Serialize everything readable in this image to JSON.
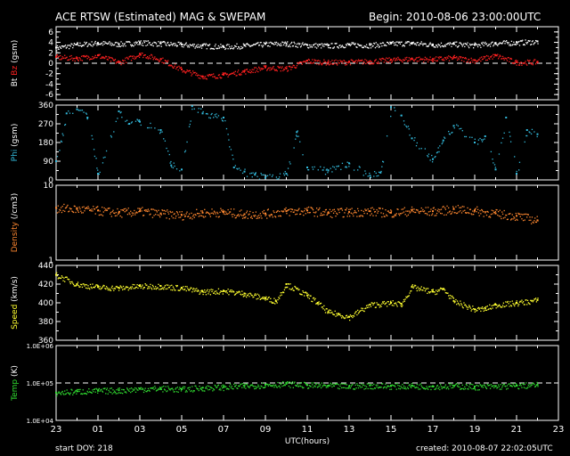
{
  "header": {
    "title": "ACE RTSW (Estimated) MAG & SWEPAM",
    "begin": "Begin: 2010-08-06 23:00:00UTC"
  },
  "footer": {
    "start_doy": "start DOY: 218",
    "created": "created: 2010-08-07 22:02:05UTC"
  },
  "colors": {
    "background": "#000000",
    "frame": "#ffffff",
    "bt": "#ffffff",
    "bz": "#ff2020",
    "phi": "#33bbdd",
    "density": "#ff8830",
    "speed": "#ffff30",
    "temp": "#30dd30"
  },
  "chart_data": [
    {
      "type": "scatter",
      "ylabel_parts": [
        "Bt",
        "Bz",
        "(gsm)"
      ],
      "ylim": [
        -7,
        7
      ],
      "yticks": [
        "6",
        "4",
        "2",
        "0",
        "-2",
        "-4",
        "-6"
      ],
      "reference_line": 0,
      "series": [
        {
          "name": "Bt",
          "x": [
            0,
            1,
            2,
            3,
            4,
            5,
            6,
            7,
            8,
            9,
            10,
            11,
            12,
            13,
            14,
            15,
            16,
            17,
            18,
            19,
            20,
            21,
            22,
            23
          ],
          "values": [
            3.0,
            3.6,
            3.9,
            3.7,
            4.0,
            3.8,
            3.6,
            3.4,
            3.2,
            3.4,
            3.7,
            3.8,
            3.5,
            3.4,
            3.6,
            3.5,
            3.8,
            3.9,
            3.6,
            3.7,
            3.5,
            3.9,
            4.0,
            4.2
          ]
        },
        {
          "name": "Bz",
          "x": [
            0,
            1,
            2,
            3,
            4,
            5,
            6,
            7,
            8,
            9,
            10,
            11,
            12,
            13,
            14,
            15,
            16,
            17,
            18,
            19,
            20,
            21,
            22,
            23
          ],
          "values": [
            1.2,
            1.0,
            1.5,
            0.2,
            1.8,
            0.8,
            -1.2,
            -2.5,
            -2.2,
            -1.5,
            -0.8,
            -1.0,
            0.5,
            0.2,
            0.3,
            0.4,
            0.7,
            0.9,
            0.8,
            1.1,
            0.6,
            1.5,
            0.2,
            0.3
          ]
        }
      ]
    },
    {
      "type": "scatter",
      "ylabel_parts": [
        "Phi",
        "(gsm)"
      ],
      "ylim": [
        0,
        360
      ],
      "yticks": [
        "360",
        "270",
        "180",
        "90",
        "0"
      ],
      "series": [
        {
          "name": "Phi",
          "x": [
            0,
            0.5,
            1,
            1.5,
            2,
            3,
            3.5,
            4,
            5,
            5.5,
            6,
            6.5,
            7,
            8,
            8.5,
            9,
            9.5,
            10,
            11,
            11.5,
            12,
            13,
            14,
            15,
            15.5,
            16,
            16.5,
            17,
            18,
            18.5,
            19,
            20,
            20.5,
            21,
            21.5,
            22,
            22.5,
            23
          ],
          "values": [
            90,
            320,
            340,
            300,
            30,
            330,
            270,
            280,
            240,
            70,
            50,
            355,
            320,
            300,
            60,
            40,
            25,
            10,
            30,
            230,
            60,
            45,
            80,
            20,
            35,
            350,
            310,
            200,
            100,
            190,
            260,
            180,
            210,
            50,
            300,
            30,
            240,
            220
          ]
        }
      ]
    },
    {
      "type": "scatter",
      "ylabel_parts": [
        "Density",
        "(/cm3)"
      ],
      "log_scale": true,
      "ylim": [
        1,
        10
      ],
      "yticks": [
        "10",
        "1"
      ],
      "series": [
        {
          "name": "Density",
          "x": [
            0,
            1,
            2,
            3,
            4,
            5,
            6,
            7,
            8,
            9,
            10,
            11,
            12,
            13,
            14,
            15,
            16,
            17,
            18,
            19,
            20,
            21,
            22,
            23
          ],
          "values": [
            5.0,
            4.8,
            4.6,
            4.3,
            4.5,
            4.2,
            4.0,
            4.3,
            4.4,
            4.1,
            4.2,
            4.5,
            4.6,
            4.3,
            4.4,
            4.5,
            4.3,
            4.6,
            4.5,
            4.8,
            4.6,
            4.2,
            3.9,
            3.4
          ]
        }
      ]
    },
    {
      "type": "scatter",
      "ylabel_parts": [
        "Speed",
        "(km/s)"
      ],
      "ylim": [
        360,
        440
      ],
      "yticks": [
        "440",
        "420",
        "400",
        "380",
        "360"
      ],
      "series": [
        {
          "name": "Speed",
          "x": [
            0,
            1,
            2,
            3,
            4,
            5,
            6,
            7,
            8,
            9,
            10,
            10.5,
            11,
            12,
            12.5,
            13,
            13.5,
            14,
            15,
            16,
            16.5,
            17,
            18,
            18.5,
            19,
            20,
            20.5,
            21,
            22,
            23
          ],
          "values": [
            430,
            420,
            417,
            416,
            418,
            418,
            416,
            412,
            413,
            410,
            405,
            402,
            420,
            408,
            400,
            390,
            388,
            385,
            398,
            400,
            399,
            417,
            412,
            415,
            402,
            393,
            394,
            398,
            400,
            403
          ]
        }
      ]
    },
    {
      "type": "scatter",
      "ylabel_parts": [
        "Temp",
        "(K)"
      ],
      "log_scale": true,
      "ylim": [
        10000,
        1000000
      ],
      "yticks": [
        "1.0E+06",
        "1.0E+05",
        "1.0E+04"
      ],
      "reference_line": 100000,
      "series": [
        {
          "name": "Temp",
          "x": [
            0,
            1,
            2,
            3,
            4,
            5,
            6,
            7,
            8,
            9,
            10,
            11,
            12,
            13,
            14,
            15,
            16,
            17,
            18,
            19,
            20,
            21,
            22,
            23
          ],
          "values": [
            55000,
            60000,
            62000,
            64000,
            70000,
            72000,
            68000,
            75000,
            78000,
            84000,
            90000,
            95000,
            88000,
            85000,
            82000,
            86000,
            83000,
            85000,
            82000,
            84000,
            80000,
            82000,
            85000,
            90000
          ]
        }
      ]
    }
  ],
  "x_axis": {
    "label": "UTC(hours)",
    "ticks": [
      "23",
      "01",
      "03",
      "05",
      "07",
      "09",
      "11",
      "13",
      "15",
      "17",
      "19",
      "21",
      "23"
    ],
    "range_hours": [
      0,
      24
    ],
    "data_end_hour": 23
  }
}
